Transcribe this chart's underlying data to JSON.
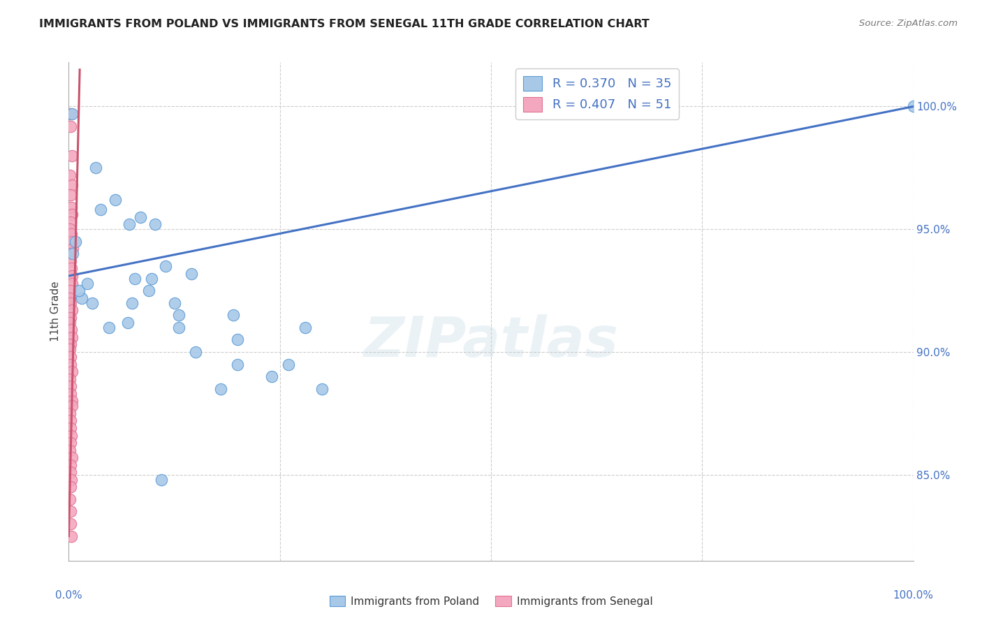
{
  "title": "IMMIGRANTS FROM POLAND VS IMMIGRANTS FROM SENEGAL 11TH GRADE CORRELATION CHART",
  "source": "Source: ZipAtlas.com",
  "ylabel": "11th Grade",
  "ylabel_right_ticks": [
    85.0,
    90.0,
    95.0,
    100.0
  ],
  "ylabel_right_labels": [
    "85.0%",
    "90.0%",
    "95.0%",
    "100.0%"
  ],
  "xlim": [
    0.0,
    100.0
  ],
  "ylim": [
    81.5,
    101.8
  ],
  "legend_r_poland": "R = 0.370",
  "legend_n_poland": "N = 35",
  "legend_r_senegal": "R = 0.407",
  "legend_n_senegal": "N = 51",
  "poland_color": "#a8c8e8",
  "senegal_color": "#f4a8c0",
  "poland_edge_color": "#5b9bd5",
  "senegal_edge_color": "#e07090",
  "poland_line_color": "#4472c4",
  "senegal_line_color": "#c9546c",
  "watermark_text": "ZIPatlas",
  "poland_line_x0": 0.0,
  "poland_line_y0": 93.1,
  "poland_line_x1": 100.0,
  "poland_line_y1": 100.0,
  "senegal_line_x0": 0.0,
  "senegal_line_y0": 82.5,
  "senegal_line_x1": 1.3,
  "senegal_line_y1": 101.5,
  "poland_x": [
    0.4,
    3.2,
    5.5,
    8.5,
    10.2,
    3.8,
    7.2,
    11.5,
    14.5,
    7.8,
    9.8,
    12.5,
    9.5,
    13.0,
    1.5,
    2.8,
    7.5,
    13.0,
    1.2,
    2.2,
    4.8,
    0.8,
    0.5,
    19.5,
    28.0,
    100.0,
    20.0,
    7.0,
    15.0,
    20.0,
    26.0,
    24.0,
    18.0,
    30.0,
    11.0
  ],
  "poland_y": [
    99.7,
    97.5,
    96.2,
    95.5,
    95.2,
    95.8,
    95.2,
    93.5,
    93.2,
    93.0,
    93.0,
    92.0,
    92.5,
    91.5,
    92.2,
    92.0,
    92.0,
    91.0,
    92.5,
    92.8,
    91.0,
    94.5,
    94.0,
    91.5,
    91.0,
    100.0,
    90.5,
    91.2,
    90.0,
    89.5,
    89.5,
    89.0,
    88.5,
    88.5,
    84.8
  ],
  "senegal_x": [
    0.15,
    0.25,
    0.35,
    0.15,
    0.4,
    0.2,
    0.3,
    0.4,
    0.2,
    0.15,
    0.3,
    0.35,
    0.45,
    0.15,
    0.25,
    0.3,
    0.35,
    0.4,
    0.2,
    0.15,
    0.25,
    0.35,
    0.2,
    0.15,
    0.3,
    0.35,
    0.2,
    0.15,
    0.25,
    0.2,
    0.35,
    0.15,
    0.2,
    0.25,
    0.35,
    0.4,
    0.15,
    0.2,
    0.25,
    0.3,
    0.2,
    0.15,
    0.35,
    0.25,
    0.2,
    0.3,
    0.25,
    0.15,
    0.2,
    0.25,
    0.3
  ],
  "senegal_y": [
    99.7,
    99.2,
    98.0,
    97.2,
    96.8,
    96.4,
    95.9,
    95.6,
    95.3,
    95.0,
    94.8,
    94.5,
    94.2,
    94.0,
    93.7,
    93.4,
    93.1,
    92.8,
    92.5,
    92.2,
    92.0,
    91.7,
    91.4,
    91.2,
    90.9,
    90.6,
    90.3,
    90.1,
    89.8,
    89.5,
    89.2,
    88.9,
    88.6,
    88.3,
    88.0,
    87.8,
    87.5,
    87.2,
    86.9,
    86.6,
    86.3,
    86.0,
    85.7,
    85.4,
    85.1,
    84.8,
    84.5,
    84.0,
    83.5,
    83.0,
    82.5
  ]
}
